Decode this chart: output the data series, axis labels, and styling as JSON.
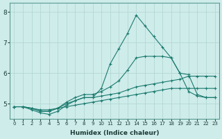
{
  "xlabel": "Humidex (Indice chaleur)",
  "background_color": "#ceecea",
  "grid_color": "#aed4d0",
  "line_color": "#1a7a6e",
  "xlim": [
    -0.5,
    23.5
  ],
  "ylim": [
    4.5,
    8.3
  ],
  "yticks": [
    5,
    6,
    7,
    8
  ],
  "xticks": [
    0,
    1,
    2,
    3,
    4,
    5,
    6,
    7,
    8,
    9,
    10,
    11,
    12,
    13,
    14,
    15,
    16,
    17,
    18,
    19,
    20,
    21,
    22,
    23
  ],
  "series": [
    {
      "x": [
        0,
        1,
        2,
        3,
        4,
        5,
        6,
        7,
        8,
        9,
        10,
        11,
        12,
        13,
        14,
        15,
        16,
        17,
        18,
        19,
        20,
        21,
        22,
        23
      ],
      "y": [
        4.9,
        4.9,
        4.85,
        4.8,
        4.8,
        4.85,
        4.9,
        4.95,
        5.0,
        5.05,
        5.1,
        5.15,
        5.2,
        5.25,
        5.3,
        5.35,
        5.4,
        5.45,
        5.5,
        5.5,
        5.5,
        5.5,
        5.5,
        5.5
      ]
    },
    {
      "x": [
        0,
        1,
        2,
        3,
        4,
        5,
        6,
        7,
        8,
        9,
        10,
        11,
        12,
        13,
        14,
        15,
        16,
        17,
        18,
        19,
        20,
        21,
        22,
        23
      ],
      "y": [
        4.9,
        4.9,
        4.85,
        4.75,
        4.75,
        4.85,
        5.0,
        5.1,
        5.2,
        5.2,
        5.25,
        5.3,
        5.35,
        5.45,
        5.55,
        5.6,
        5.65,
        5.7,
        5.75,
        5.8,
        5.9,
        5.9,
        5.9,
        5.9
      ]
    },
    {
      "x": [
        0,
        1,
        2,
        3,
        4,
        5,
        6,
        7,
        8,
        9,
        10,
        11,
        12,
        13,
        14,
        15,
        16,
        17,
        18,
        19,
        20,
        21,
        22,
        23
      ],
      "y": [
        4.9,
        4.9,
        4.85,
        4.75,
        4.75,
        4.85,
        5.05,
        5.2,
        5.3,
        5.3,
        5.4,
        5.55,
        5.75,
        6.1,
        6.5,
        6.55,
        6.55,
        6.55,
        6.5,
        6.0,
        5.95,
        5.3,
        5.2,
        5.2
      ]
    },
    {
      "x": [
        0,
        1,
        2,
        3,
        4,
        5,
        6,
        7,
        8,
        9,
        10,
        11,
        12,
        13,
        14,
        15,
        16,
        17,
        18,
        19,
        20,
        21,
        22,
        23
      ],
      "y": [
        4.9,
        4.9,
        4.8,
        4.7,
        4.65,
        4.75,
        4.95,
        5.1,
        5.2,
        5.2,
        5.5,
        6.3,
        6.8,
        7.3,
        7.9,
        7.55,
        7.2,
        6.85,
        6.5,
        6.0,
        5.4,
        5.25,
        5.2,
        5.2
      ]
    }
  ]
}
